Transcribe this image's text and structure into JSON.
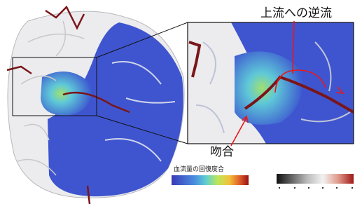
{
  "annotations": {
    "backflow": "上流への逆流",
    "anastomosis": "吻合"
  },
  "colorbar": {
    "label": "血流量の回復度合"
  }
}
